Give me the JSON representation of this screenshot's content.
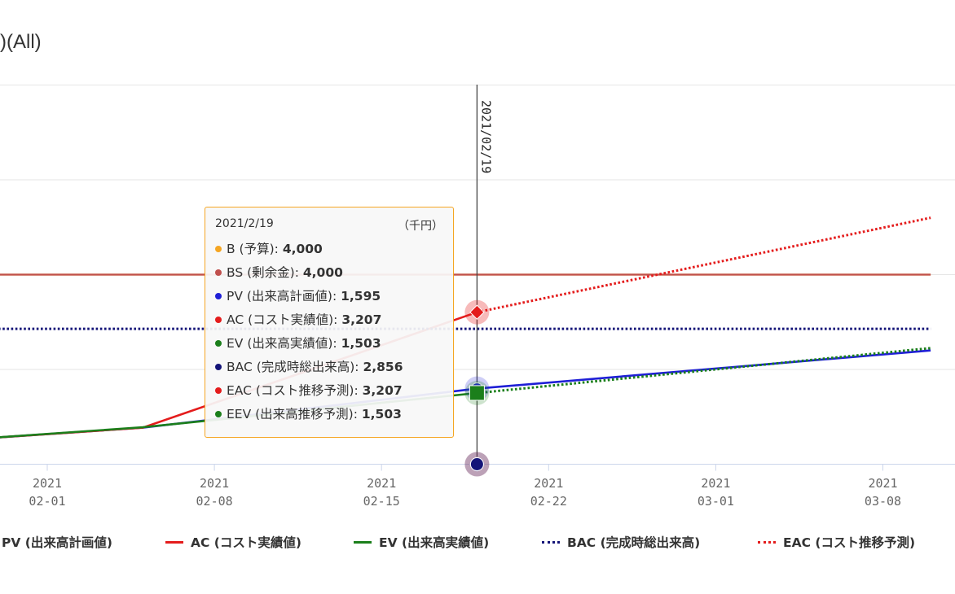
{
  "chart_data": {
    "type": "line",
    "title": ")(All)",
    "x_range": [
      "2021-01-28",
      "2021-03-10"
    ],
    "y_range": [
      0,
      8000
    ],
    "grid": true,
    "x_ticks": [
      {
        "date": "2021-02-01",
        "year": "2021",
        "label": "02-01"
      },
      {
        "date": "2021-02-08",
        "year": "2021",
        "label": "02-08"
      },
      {
        "date": "2021-02-15",
        "year": "2021",
        "label": "02-15"
      },
      {
        "date": "2021-02-22",
        "year": "2021",
        "label": "02-22"
      },
      {
        "date": "2021-03-01",
        "year": "2021",
        "label": "03-01"
      },
      {
        "date": "2021-03-08",
        "year": "2021",
        "label": "03-08"
      }
    ],
    "reference_line": {
      "date": "2021-02-19",
      "label": "2021/02/19"
    },
    "series": [
      {
        "key": "b",
        "name": "B (予算)",
        "color": "#f5a623",
        "dash": "none",
        "points": [
          [
            "2021-01-28",
            4000
          ],
          [
            "2021-03-10",
            4000
          ]
        ]
      },
      {
        "key": "bs",
        "name": "BS (剰余金)",
        "color": "#c0504d",
        "dash": "none",
        "points": [
          [
            "2021-01-28",
            4000
          ],
          [
            "2021-03-10",
            4000
          ]
        ]
      },
      {
        "key": "pv",
        "name": "PV (出来高計画値)",
        "color": "#1f1fd6",
        "dash": "none",
        "points": [
          [
            "2021-01-28",
            500
          ],
          [
            "2021-02-05",
            770
          ],
          [
            "2021-02-19",
            1595
          ],
          [
            "2021-03-10",
            2400
          ]
        ]
      },
      {
        "key": "ac",
        "name": "AC (コスト実績値)",
        "color": "#e41c1c",
        "dash": "none",
        "points": [
          [
            "2021-01-28",
            500
          ],
          [
            "2021-02-05",
            770
          ],
          [
            "2021-02-19",
            3207
          ]
        ]
      },
      {
        "key": "ev",
        "name": "EV (出来高実績値)",
        "color": "#1b7f1b",
        "dash": "none",
        "points": [
          [
            "2021-01-28",
            500
          ],
          [
            "2021-02-05",
            780
          ],
          [
            "2021-02-19",
            1503
          ]
        ]
      },
      {
        "key": "bac",
        "name": "BAC (完成時総出来高)",
        "color": "#141478",
        "dash": "dot",
        "points": [
          [
            "2021-01-28",
            2856
          ],
          [
            "2021-03-10",
            2856
          ]
        ]
      },
      {
        "key": "eac",
        "name": "EAC (コスト推移予測)",
        "color": "#e41c1c",
        "dash": "dot",
        "points": [
          [
            "2021-02-19",
            3207
          ],
          [
            "2021-03-10",
            5200
          ]
        ]
      },
      {
        "key": "eev",
        "name": "EEV (出来高推移予測)",
        "color": "#1b7f1b",
        "dash": "dot",
        "points": [
          [
            "2021-02-19",
            1503
          ],
          [
            "2021-03-10",
            2450
          ]
        ]
      }
    ]
  },
  "tooltip": {
    "date": "2021/2/19",
    "unit": "（千円）",
    "rows": [
      {
        "label": "B (予算)",
        "value": "4,000",
        "color": "#f5a623"
      },
      {
        "label": "BS (剰余金)",
        "value": "4,000",
        "color": "#c0504d"
      },
      {
        "label": "PV (出来高計画値)",
        "value": "1,595",
        "color": "#1f1fd6"
      },
      {
        "label": "AC (コスト実績値)",
        "value": "3,207",
        "color": "#e41c1c"
      },
      {
        "label": "EV (出来高実績値)",
        "value": "1,503",
        "color": "#1b7f1b"
      },
      {
        "label": "BAC (完成時総出来高)",
        "value": "2,856",
        "color": "#141478"
      },
      {
        "label": "EAC (コスト推移予測)",
        "value": "3,207",
        "color": "#e41c1c"
      },
      {
        "label": "EEV (出来高推移予測)",
        "value": "1,503",
        "color": "#1b7f1b"
      }
    ]
  },
  "legend": [
    {
      "label": "PV (出来高計画値)",
      "color": "#1f1fd6",
      "dash": "none"
    },
    {
      "label": "AC (コスト実績値)",
      "color": "#e41c1c",
      "dash": "none"
    },
    {
      "label": "EV (出来高実績値)",
      "color": "#1b7f1b",
      "dash": "none"
    },
    {
      "label": "BAC (完成時総出来高)",
      "color": "#141478",
      "dash": "dot"
    },
    {
      "label": "EAC (コスト推移予測)",
      "color": "#e41c1c",
      "dash": "dot"
    }
  ]
}
